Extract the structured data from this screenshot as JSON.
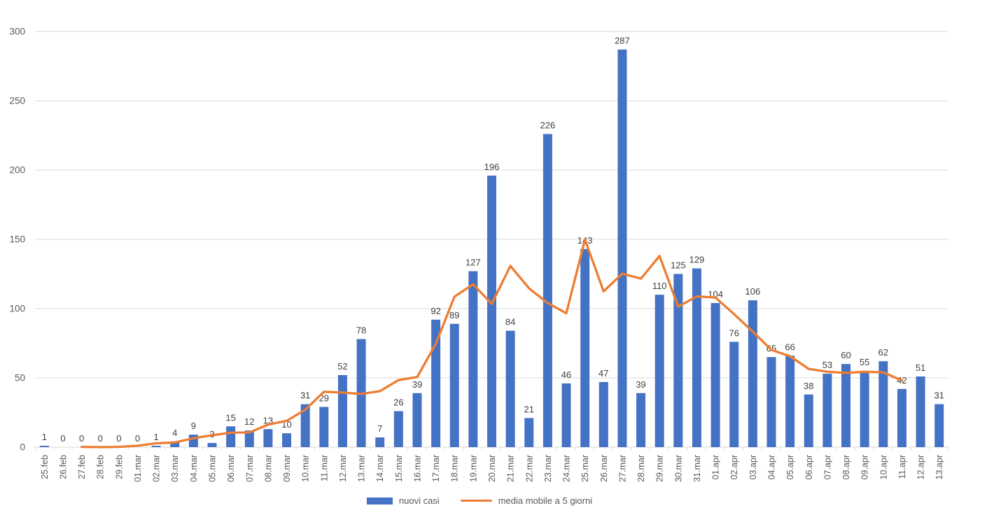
{
  "chart_data": {
    "type": "bar",
    "title": "",
    "xlabel": "",
    "ylabel": "",
    "ylim": [
      0,
      300
    ],
    "yticks": [
      0,
      50,
      100,
      150,
      200,
      250,
      300
    ],
    "grid": true,
    "legend_position": "bottom",
    "bar_value_labels_shown": true,
    "categories": [
      "25.feb",
      "26.feb",
      "27.feb",
      "28.feb",
      "29.feb",
      "01.mar",
      "02.mar",
      "03.mar",
      "04.mar",
      "05.mar",
      "06.mar",
      "07.mar",
      "08.mar",
      "09.mar",
      "10.mar",
      "11.mar",
      "12.mar",
      "13.mar",
      "14.mar",
      "15.mar",
      "16.mar",
      "17.mar",
      "18.mar",
      "19.mar",
      "20.mar",
      "21.mar",
      "22.mar",
      "23.mar",
      "24.mar",
      "25.mar",
      "26.mar",
      "27.mar",
      "28.mar",
      "29.mar",
      "30.mar",
      "31.mar",
      "01.apr",
      "02.apr",
      "03.apr",
      "04.apr",
      "05.apr",
      "06.apr",
      "07.apr",
      "08.apr",
      "09.apr",
      "10.apr",
      "11.apr",
      "12.apr",
      "13.apr"
    ],
    "series": [
      {
        "name": "nuovi casi",
        "type": "bar",
        "color": "#4472C4",
        "values": [
          1,
          0,
          0,
          0,
          0,
          0,
          1,
          4,
          9,
          3,
          15,
          12,
          13,
          10,
          31,
          29,
          52,
          78,
          7,
          26,
          39,
          92,
          89,
          127,
          196,
          84,
          21,
          226,
          46,
          143,
          47,
          287,
          39,
          110,
          125,
          129,
          104,
          76,
          106,
          65,
          66,
          38,
          53,
          60,
          55,
          62,
          42,
          51,
          31
        ]
      },
      {
        "name": "media mobile a 5 giorni",
        "type": "line",
        "color": "#ED7D31",
        "values": [
          null,
          null,
          0.2,
          0,
          0.2,
          1,
          2.8,
          3.4,
          6.4,
          8.6,
          10.4,
          10.6,
          16.2,
          19,
          27,
          40,
          39.4,
          38.4,
          40.4,
          48.4,
          50.6,
          74.6,
          108.6,
          117.6,
          103.4,
          130.8,
          114.6,
          104,
          96.6,
          149.8,
          112.4,
          125.2,
          121.6,
          138,
          101.4,
          108.8,
          108,
          96,
          83.4,
          70.2,
          65.6,
          56.4,
          54.4,
          53.6,
          54.4,
          54,
          48.2,
          null,
          null
        ]
      }
    ]
  },
  "colors": {
    "bar": "#4472C4",
    "line": "#ED7D31",
    "gridline": "#D9D9D9",
    "axis_text": "#595959",
    "bar_label_text": "#404040",
    "background": "#FFFFFF"
  }
}
